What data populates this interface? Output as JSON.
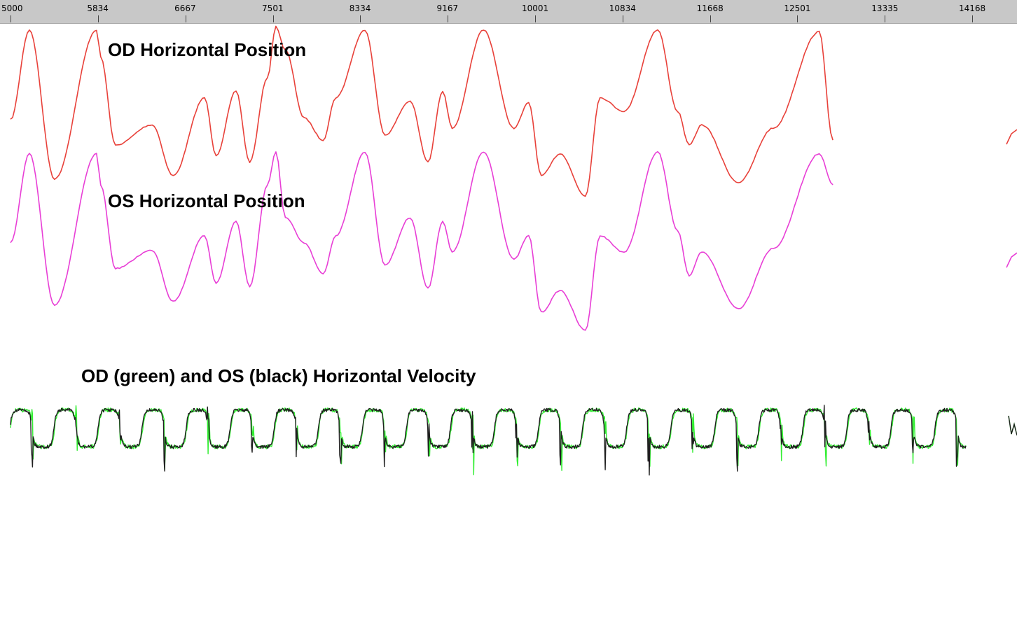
{
  "chart_data": {
    "type": "line",
    "x_ticks": [
      5000,
      5834,
      6667,
      7501,
      8334,
      9167,
      10001,
      10834,
      11668,
      12501,
      13335,
      14168
    ],
    "xlim": [
      5000,
      14168
    ],
    "grid": false,
    "legend": "none",
    "panels": [
      {
        "title": "OD Horizontal Position",
        "series": [
          {
            "color": "#e8413a",
            "x": [
              5000,
              5180,
              5420,
              5820,
              5860,
              6000,
              6350,
              6550,
              6850,
              6960,
              7150,
              7280,
              7450,
              7530,
              7620,
              7800,
              7980,
              8100,
              8380,
              8570,
              8810,
              8980,
              9120,
              9210,
              9510,
              9800,
              9940,
              10060,
              10240,
              10480,
              10620,
              10850,
              11170,
              11360,
              11470,
              11590,
              11940,
              12270,
              12710,
              12840
            ],
            "values": [
              0.45,
              0.98,
              0.1,
              0.98,
              0.82,
              0.3,
              0.42,
              0.12,
              0.58,
              0.24,
              0.62,
              0.2,
              0.7,
              1.0,
              0.86,
              0.46,
              0.33,
              0.58,
              0.98,
              0.36,
              0.56,
              0.2,
              0.62,
              0.4,
              0.98,
              0.4,
              0.55,
              0.12,
              0.25,
              0.0,
              0.58,
              0.5,
              0.98,
              0.5,
              0.3,
              0.42,
              0.08,
              0.4,
              0.97,
              0.33
            ]
          }
        ]
      },
      {
        "title": "OS Horizontal Position",
        "series": [
          {
            "color": "#e83fd6",
            "x": [
              5000,
              5180,
              5420,
              5820,
              5860,
              6000,
              6350,
              6550,
              6850,
              6960,
              7150,
              7280,
              7450,
              7530,
              7620,
              7800,
              7980,
              8100,
              8380,
              8570,
              8810,
              8980,
              9120,
              9210,
              9510,
              9800,
              9940,
              10060,
              10240,
              10480,
              10620,
              10850,
              11170,
              11360,
              11470,
              11590,
              11940,
              12270,
              12710,
              12840
            ],
            "values": [
              0.48,
              0.97,
              0.14,
              0.97,
              0.8,
              0.34,
              0.44,
              0.16,
              0.52,
              0.26,
              0.6,
              0.24,
              0.8,
              0.98,
              0.62,
              0.48,
              0.31,
              0.52,
              0.98,
              0.36,
              0.62,
              0.23,
              0.6,
              0.43,
              0.98,
              0.39,
              0.52,
              0.1,
              0.22,
              0.0,
              0.52,
              0.43,
              0.98,
              0.55,
              0.3,
              0.43,
              0.12,
              0.45,
              0.97,
              0.8
            ]
          }
        ]
      },
      {
        "title": "OD (green) and OS (black) Horizontal Velocity",
        "series": [
          {
            "color": "#33ee33",
            "cycle_period": 420,
            "amplitude": 0.22,
            "noise": 0.05
          },
          {
            "color": "#1f1f1f",
            "cycle_period": 420,
            "amplitude": 0.22,
            "noise": 0.04
          }
        ]
      }
    ]
  }
}
